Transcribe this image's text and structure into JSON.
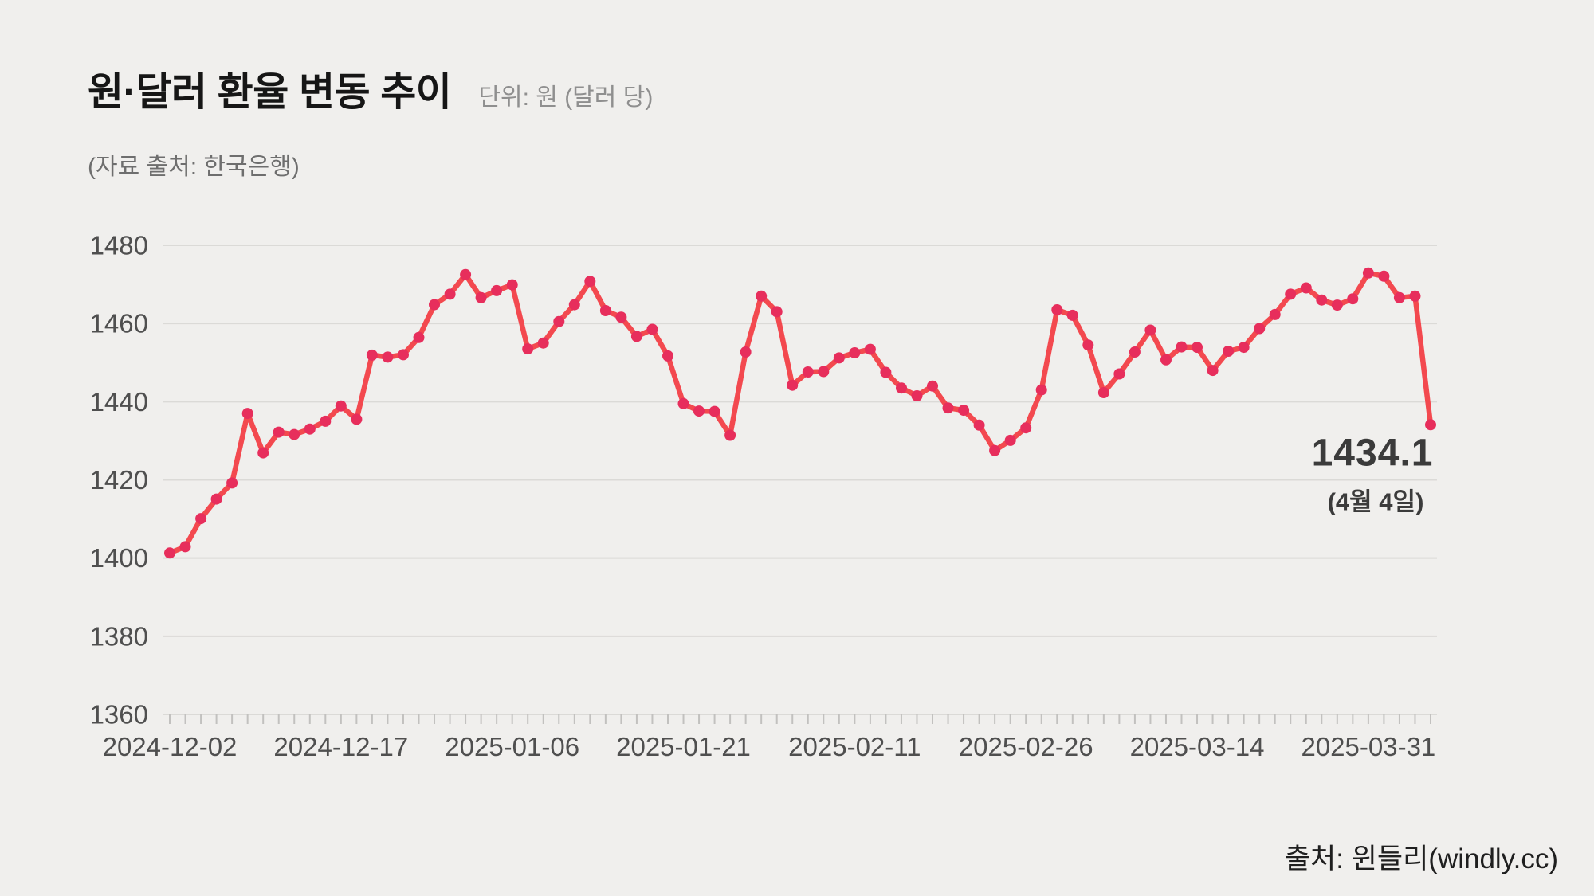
{
  "header": {
    "title": "원·달러 환율 변동 추이",
    "unit_label": "단위: 원 (달러 당)",
    "source_note": "(자료 출처: 한국은행)"
  },
  "annotation": {
    "value": "1434.1",
    "date_label": "(4월 4일)"
  },
  "footer": {
    "credit": "출처: 윈들리(windly.cc)"
  },
  "colors": {
    "background": "#f0efed",
    "gridline": "#dbdad7",
    "axis_tick": "#c2c1bf",
    "axis_label": "#4f4f4f",
    "line": "#f3494f",
    "point": "#e72e5c",
    "title": "#161616",
    "subtitle": "#8f8f8f",
    "source_note": "#6e6e6e",
    "annotation": "#3b3b3b",
    "footer": "#1f1f1f"
  },
  "chart_data": {
    "type": "line",
    "title": "원·달러 환율 변동 추이",
    "ylabel": "원 (달러 당)",
    "ylim": [
      1360,
      1480
    ],
    "grid": "horizontal",
    "y_ticks": [
      1480,
      1460,
      1440,
      1420,
      1400,
      1380,
      1360
    ],
    "x_tick_labels": [
      "2024-12-02",
      "2024-12-17",
      "2025-01-06",
      "2025-01-21",
      "2025-02-11",
      "2025-02-26",
      "2025-03-14",
      "2025-03-31"
    ],
    "x_tick_indices": [
      0,
      11,
      22,
      33,
      44,
      55,
      66,
      77
    ],
    "dates": [
      "2024-12-02",
      "2024-12-03",
      "2024-12-04",
      "2024-12-05",
      "2024-12-06",
      "2024-12-09",
      "2024-12-10",
      "2024-12-11",
      "2024-12-12",
      "2024-12-13",
      "2024-12-16",
      "2024-12-17",
      "2024-12-18",
      "2024-12-19",
      "2024-12-20",
      "2024-12-23",
      "2024-12-24",
      "2024-12-26",
      "2024-12-27",
      "2024-12-30",
      "2025-01-02",
      "2025-01-03",
      "2025-01-06",
      "2025-01-07",
      "2025-01-08",
      "2025-01-09",
      "2025-01-10",
      "2025-01-13",
      "2025-01-14",
      "2025-01-15",
      "2025-01-16",
      "2025-01-17",
      "2025-01-20",
      "2025-01-21",
      "2025-01-22",
      "2025-01-23",
      "2025-01-24",
      "2025-01-31",
      "2025-02-03",
      "2025-02-04",
      "2025-02-05",
      "2025-02-06",
      "2025-02-07",
      "2025-02-10",
      "2025-02-11",
      "2025-02-12",
      "2025-02-13",
      "2025-02-14",
      "2025-02-17",
      "2025-02-18",
      "2025-02-19",
      "2025-02-20",
      "2025-02-21",
      "2025-02-24",
      "2025-02-25",
      "2025-02-26",
      "2025-02-27",
      "2025-02-28",
      "2025-03-04",
      "2025-03-05",
      "2025-03-06",
      "2025-03-07",
      "2025-03-10",
      "2025-03-11",
      "2025-03-12",
      "2025-03-13",
      "2025-03-14",
      "2025-03-17",
      "2025-03-18",
      "2025-03-19",
      "2025-03-20",
      "2025-03-21",
      "2025-03-24",
      "2025-03-25",
      "2025-03-26",
      "2025-03-27",
      "2025-03-28",
      "2025-03-31",
      "2025-04-01",
      "2025-04-02",
      "2025-04-03",
      "2025-04-04"
    ],
    "values": [
      1401.3,
      1402.9,
      1410.1,
      1415.1,
      1419.2,
      1437.0,
      1426.9,
      1432.2,
      1431.6,
      1433.0,
      1435.0,
      1438.9,
      1435.5,
      1451.9,
      1451.4,
      1452.0,
      1456.4,
      1464.8,
      1467.5,
      1472.5,
      1466.6,
      1468.4,
      1469.9,
      1453.5,
      1455.0,
      1460.5,
      1464.8,
      1470.8,
      1463.3,
      1461.6,
      1456.7,
      1458.5,
      1451.7,
      1439.5,
      1437.6,
      1437.5,
      1431.4,
      1452.7,
      1467.0,
      1463.0,
      1444.2,
      1447.6,
      1447.7,
      1451.2,
      1452.5,
      1453.4,
      1447.5,
      1443.5,
      1441.5,
      1444.0,
      1438.4,
      1437.8,
      1434.0,
      1427.5,
      1430.1,
      1433.3,
      1443.0,
      1463.5,
      1462.1,
      1454.5,
      1442.3,
      1447.1,
      1452.7,
      1458.3,
      1450.7,
      1454.0,
      1453.9,
      1448.0,
      1452.9,
      1453.9,
      1458.7,
      1462.3,
      1467.5,
      1469.1,
      1466.0,
      1464.7,
      1466.3,
      1472.9,
      1472.1,
      1466.6,
      1467.0,
      1434.1
    ],
    "last_point": {
      "date": "2025-04-04",
      "value": 1434.1,
      "label": "1434.1 (4월 4일)"
    },
    "legend": null
  }
}
